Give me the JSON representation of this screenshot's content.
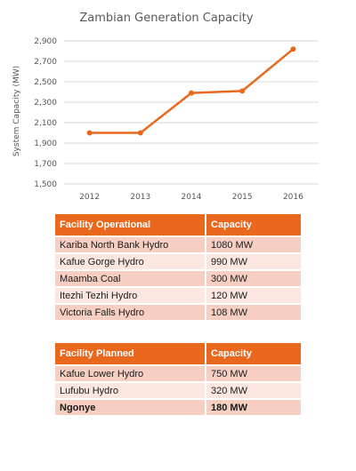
{
  "chart_data": {
    "type": "line",
    "title": "Zambian Generation Capacity",
    "xlabel": "",
    "ylabel": "System Capacity (MW)",
    "categories": [
      "2012",
      "2013",
      "2014",
      "2015",
      "2016"
    ],
    "series": [
      {
        "values": [
          2000,
          2000,
          2390,
          2410,
          2820
        ],
        "color": "#e9681e"
      }
    ],
    "ylim": [
      1500,
      2900
    ],
    "yticks": [
      1500,
      1700,
      1900,
      2100,
      2300,
      2500,
      2700,
      2900
    ],
    "ytick_labels": [
      "1,500",
      "1,700",
      "1,900",
      "2,100",
      "2,300",
      "2,500",
      "2,700",
      "2,900"
    ],
    "grid": true,
    "legend": "none"
  },
  "tables": {
    "operational": {
      "headers": [
        "Facility Operational",
        "Capacity"
      ],
      "rows": [
        [
          "Kariba North Bank Hydro",
          "1080 MW"
        ],
        [
          "Kafue Gorge Hydro",
          "990 MW"
        ],
        [
          "Maamba Coal",
          "300 MW"
        ],
        [
          "Itezhi Tezhi Hydro",
          "120 MW"
        ],
        [
          "Victoria Falls Hydro",
          "108 MW"
        ]
      ]
    },
    "planned": {
      "headers": [
        "Facility Planned",
        "Capacity"
      ],
      "rows": [
        [
          "Kafue Lower Hydro",
          "750 MW"
        ],
        [
          "Lufubu Hydro",
          "320 MW"
        ],
        [
          "Ngonye",
          "180 MW"
        ]
      ]
    }
  },
  "colors": {
    "accent": "#e9681e",
    "row_dark": "#f7cfc2",
    "row_light": "#fbe7df",
    "gridline": "#d9d9d9"
  }
}
